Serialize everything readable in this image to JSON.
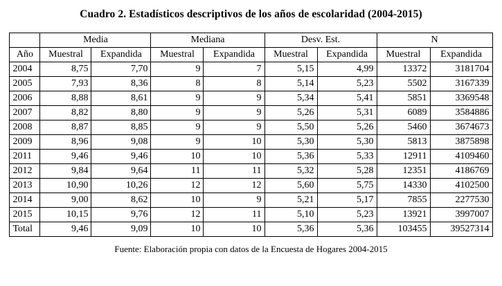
{
  "title": "Cuadro 2. Estadísticos descriptivos de los años de escolaridad (2004-2015)",
  "table": {
    "group_headers": [
      {
        "label": "",
        "span": 1
      },
      {
        "label": "Media",
        "span": 2
      },
      {
        "label": "Mediana",
        "span": 2
      },
      {
        "label": "Desv. Est.",
        "span": 2
      },
      {
        "label": "N",
        "span": 2
      }
    ],
    "column_headers": [
      "Año",
      "Muestral",
      "Expandida",
      "Muestral",
      "Expandida",
      "Muestral",
      "Expandida",
      "Muestral",
      "Expandida"
    ],
    "rows": [
      [
        "2004",
        "8,75",
        "7,70",
        "9",
        "7",
        "5,15",
        "4,99",
        "13372",
        "3181704"
      ],
      [
        "2005",
        "7,93",
        "8,36",
        "8",
        "8",
        "5,14",
        "5,23",
        "5502",
        "3167339"
      ],
      [
        "2006",
        "8,88",
        "8,61",
        "9",
        "9",
        "5,34",
        "5,41",
        "5851",
        "3369548"
      ],
      [
        "2007",
        "8,82",
        "8,80",
        "9",
        "9",
        "5,26",
        "5,31",
        "6089",
        "3584886"
      ],
      [
        "2008",
        "8,87",
        "8,85",
        "9",
        "9",
        "5,50",
        "5,26",
        "5460",
        "3674673"
      ],
      [
        "2009",
        "8,96",
        "9,08",
        "9",
        "10",
        "5,30",
        "5,30",
        "5813",
        "3875898"
      ],
      [
        "2011",
        "9,46",
        "9,46",
        "10",
        "10",
        "5,36",
        "5,33",
        "12911",
        "4109460"
      ],
      [
        "2012",
        "9,84",
        "9,64",
        "11",
        "11",
        "5,32",
        "5,28",
        "12351",
        "4186769"
      ],
      [
        "2013",
        "10,90",
        "10,26",
        "12",
        "12",
        "5,60",
        "5,75",
        "14330",
        "4102500"
      ],
      [
        "2014",
        "9,00",
        "8,62",
        "10",
        "9",
        "5,21",
        "5,17",
        "7855",
        "2277530"
      ],
      [
        "2015",
        "10,15",
        "9,76",
        "12",
        "11",
        "5,10",
        "5,23",
        "13921",
        "3997007"
      ],
      [
        "Total",
        "9,46",
        "9,09",
        "10",
        "10",
        "5,36",
        "5,36",
        "103455",
        "39527314"
      ]
    ]
  },
  "footer": "Fuente: Elaboración propia con datos de la Encuesta de Hogares 2004-2015",
  "colors": {
    "text": "#000000",
    "border": "#000000",
    "background": "#ffffff"
  }
}
